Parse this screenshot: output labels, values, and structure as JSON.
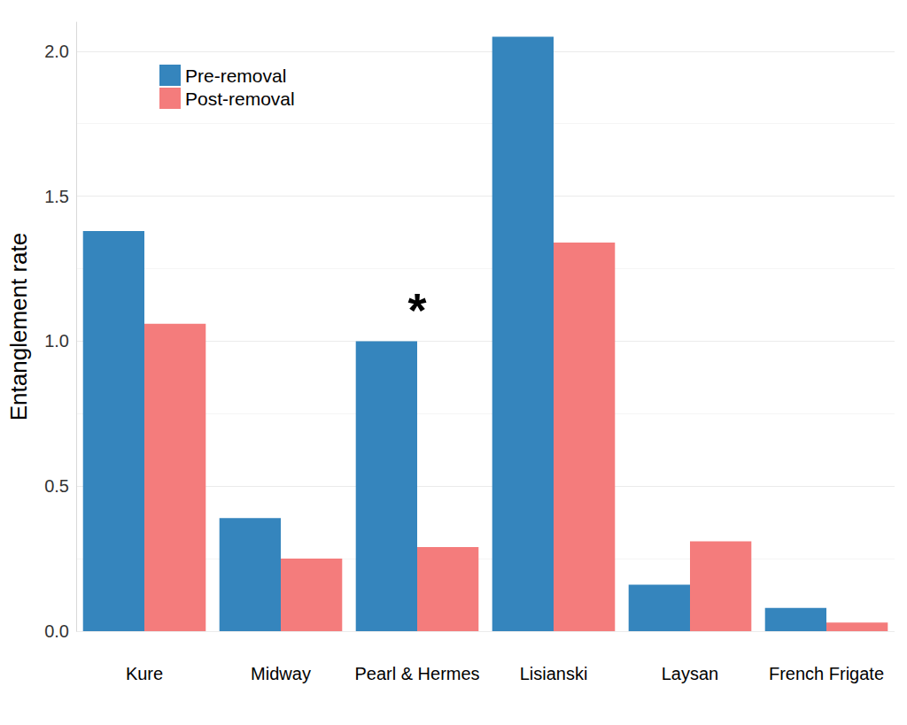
{
  "chart_data": {
    "type": "bar",
    "y_label": "Entanglement rate",
    "categories": [
      "Kure",
      "Midway",
      "Pearl & Hermes",
      "Lisianski",
      "Laysan",
      "French Frigate"
    ],
    "series": [
      {
        "name": "Pre-removal",
        "color": "#3585bd",
        "values": [
          1.38,
          0.39,
          1.0,
          2.05,
          0.16,
          0.08
        ]
      },
      {
        "name": "Post-removal",
        "color": "#f47c7c",
        "values": [
          1.06,
          0.25,
          0.29,
          1.34,
          0.31,
          0.03
        ]
      }
    ],
    "ylim": [
      0,
      2.1
    ],
    "yticks": [
      {
        "value": 0,
        "label": "0.0"
      },
      0.5,
      {
        "value": 1,
        "label": "1.0"
      },
      1.5,
      {
        "value": 2,
        "label": "2.0"
      }
    ],
    "grid": true,
    "legend": "top-left",
    "annotations": [
      {
        "text": "*",
        "category": "Pearl & Hermes"
      }
    ]
  }
}
